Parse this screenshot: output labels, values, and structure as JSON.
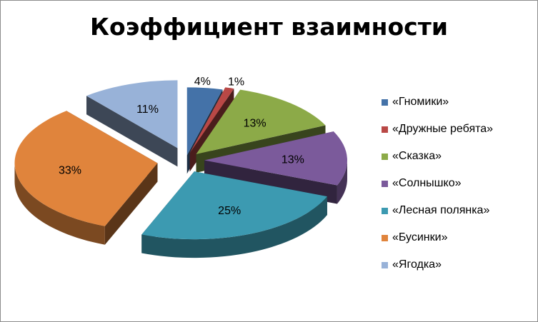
{
  "chart_data": {
    "type": "pie",
    "title": "Коэффициент взаимности",
    "legend_position": "right",
    "slices": [
      {
        "label": "«Гномики»",
        "value": 4,
        "value_label": "4%",
        "color": "#4472a8"
      },
      {
        "label": "«Дружные ребята»",
        "value": 1,
        "value_label": "1%",
        "color": "#b94846"
      },
      {
        "label": "«Сказка»",
        "value": 13,
        "value_label": "13%",
        "color": "#8caa48"
      },
      {
        "label": "«Солнышко»",
        "value": 13,
        "value_label": "13%",
        "color": "#7b5a9b"
      },
      {
        "label": "«Лесная полянка»",
        "value": 25,
        "value_label": "25%",
        "color": "#3c9ab1"
      },
      {
        "label": "«Бусинки»",
        "value": 33,
        "value_label": "33%",
        "color": "#e0843c"
      },
      {
        "label": "«Ягодка»",
        "value": 11,
        "value_label": "11%",
        "color": "#98b2d8"
      }
    ]
  }
}
